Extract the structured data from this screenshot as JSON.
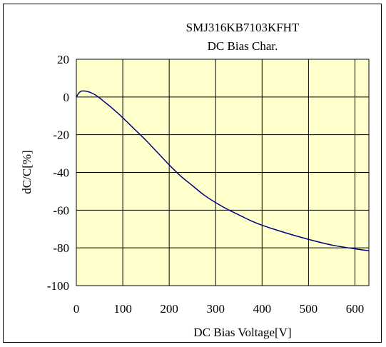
{
  "chart_data": {
    "type": "line",
    "title_line1": "SMJ316KB7103KFHT",
    "title_line2": "DC Bias Char.",
    "xlabel": "DC Bias Voltage[V]",
    "ylabel": "dC/C[%]",
    "xlim": [
      0,
      630
    ],
    "ylim": [
      -100,
      20
    ],
    "xticks": [
      0,
      100,
      200,
      300,
      400,
      500,
      600
    ],
    "yticks": [
      20,
      0,
      -20,
      -40,
      -60,
      -80,
      -100
    ],
    "xtick_labels": [
      "0",
      "100",
      "200",
      "300",
      "400",
      "500",
      "600"
    ],
    "ytick_labels": [
      "20",
      "0",
      "-20",
      "-40",
      "-60",
      "-80",
      "-100"
    ],
    "grid": true,
    "colors": {
      "plot_bg": "#ffffcc",
      "line": "#00007f",
      "grid": "#000000"
    },
    "series": [
      {
        "x": [
          0,
          5,
          10,
          15,
          20,
          25,
          30,
          40,
          50,
          60,
          75,
          100,
          125,
          150,
          175,
          200,
          225,
          250,
          275,
          300,
          325,
          350,
          375,
          400,
          450,
          500,
          550,
          600,
          630
        ],
        "y": [
          0,
          2,
          3,
          3.2,
          3.1,
          2.8,
          2.4,
          1.2,
          -0.5,
          -2.5,
          -5.5,
          -11,
          -17,
          -23,
          -29.5,
          -36,
          -42,
          -47,
          -52,
          -56,
          -59.5,
          -62.5,
          -65.5,
          -68,
          -72,
          -75.5,
          -78.5,
          -80.5,
          -81.5
        ]
      }
    ]
  }
}
